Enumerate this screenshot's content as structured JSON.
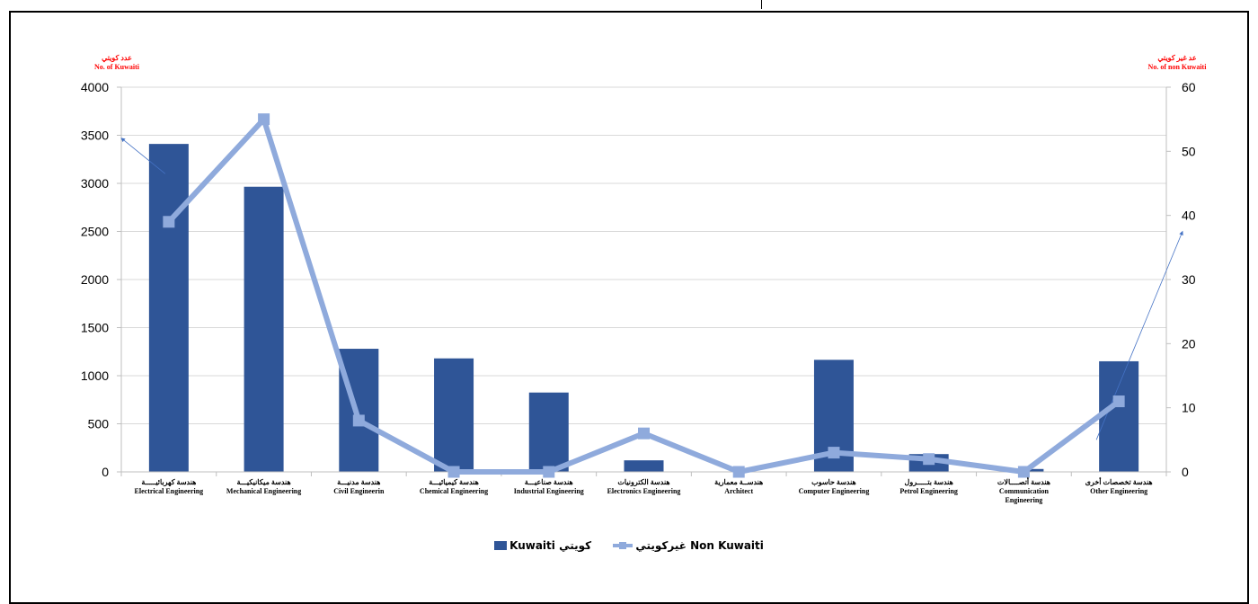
{
  "chart_data": {
    "type": "bar",
    "categories": [
      [
        "هندسة كهربائيـــــة",
        "Electrical Engineering"
      ],
      [
        "هندسة ميكانيكيـــة",
        "Mechanical Engineering"
      ],
      [
        "هندسة مدنيـــة",
        "Civil Engineerin"
      ],
      [
        "هندسة كيميائيـــة",
        "Chemical Engineering"
      ],
      [
        "هندسة صناعيـــة",
        "Industrial Engineering"
      ],
      [
        "هندسة الكترونيات",
        "Electronics Engineering"
      ],
      [
        "هندســة معمارية",
        "Architect"
      ],
      [
        "هندسة حاسوب",
        "Computer Engineering"
      ],
      [
        "هندسة بتـــــرول",
        "Petrol Engineering"
      ],
      [
        "هندسة أتصــــالات",
        "Communication",
        "Engineering"
      ],
      [
        "هندسة تخصصات أخرى",
        "Other Engineering"
      ]
    ],
    "series": [
      {
        "name": "Kuwaiti كويتي",
        "type": "bar",
        "axis": "left",
        "color": "#2f5597",
        "values": [
          3410,
          2965,
          1280,
          1180,
          825,
          120,
          0,
          1165,
          185,
          30,
          1150
        ]
      },
      {
        "name": "غيركويتي Non Kuwaiti",
        "type": "line",
        "axis": "right",
        "color": "#8faadc",
        "values": [
          39,
          55,
          8,
          0,
          0,
          6,
          0,
          3,
          2,
          0,
          11
        ]
      }
    ],
    "left_axis": {
      "title_ar": "عدد كويتي",
      "title_en": "No. of Kuwaiti",
      "ylim": [
        0,
        4000
      ],
      "ticks": [
        0,
        500,
        1000,
        1500,
        2000,
        2500,
        3000,
        3500,
        4000
      ]
    },
    "right_axis": {
      "title_ar": "عد غير كويتي",
      "title_en": "No. of  non Kuwaiti",
      "ylim": [
        0,
        60
      ],
      "ticks": [
        0,
        10,
        20,
        30,
        40,
        50,
        60
      ]
    },
    "grid": true,
    "legend": "bottom-center"
  }
}
